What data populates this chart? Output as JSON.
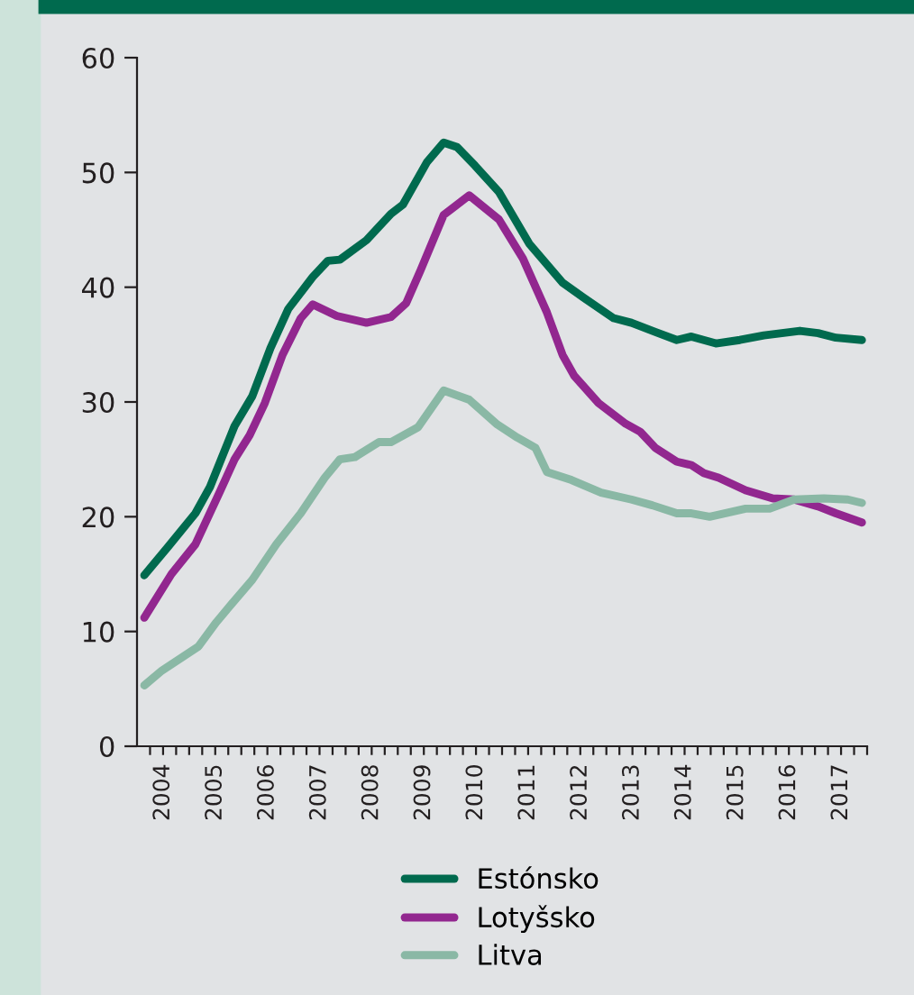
{
  "chart_data": {
    "type": "line",
    "xlim": [
      2004.0,
      2018.0
    ],
    "xticks": [
      {
        "value": 2004.25,
        "label": null
      },
      {
        "value": 2004.5,
        "label": "2004"
      },
      {
        "value": 2004.75,
        "label": null
      },
      {
        "value": 2005,
        "label": null
      },
      {
        "value": 2005.25,
        "label": null
      },
      {
        "value": 2005.5,
        "label": "2005"
      },
      {
        "value": 2005.75,
        "label": null
      },
      {
        "value": 2006,
        "label": null
      },
      {
        "value": 2006.25,
        "label": null
      },
      {
        "value": 2006.5,
        "label": "2006"
      },
      {
        "value": 2006.75,
        "label": null
      },
      {
        "value": 2007,
        "label": null
      },
      {
        "value": 2007.25,
        "label": null
      },
      {
        "value": 2007.5,
        "label": "2007"
      },
      {
        "value": 2007.75,
        "label": null
      },
      {
        "value": 2008,
        "label": null
      },
      {
        "value": 2008.25,
        "label": null
      },
      {
        "value": 2008.5,
        "label": "2008"
      },
      {
        "value": 2008.75,
        "label": null
      },
      {
        "value": 2009,
        "label": null
      },
      {
        "value": 2009.25,
        "label": null
      },
      {
        "value": 2009.5,
        "label": "2009"
      },
      {
        "value": 2009.75,
        "label": null
      },
      {
        "value": 2010,
        "label": null
      },
      {
        "value": 2010.25,
        "label": null
      },
      {
        "value": 2010.5,
        "label": "2010"
      },
      {
        "value": 2010.75,
        "label": null
      },
      {
        "value": 2011,
        "label": null
      },
      {
        "value": 2011.25,
        "label": null
      },
      {
        "value": 2011.5,
        "label": "2011"
      },
      {
        "value": 2011.75,
        "label": null
      },
      {
        "value": 2012,
        "label": null
      },
      {
        "value": 2012.25,
        "label": null
      },
      {
        "value": 2012.5,
        "label": "2012"
      },
      {
        "value": 2012.75,
        "label": null
      },
      {
        "value": 2013,
        "label": null
      },
      {
        "value": 2013.25,
        "label": null
      },
      {
        "value": 2013.5,
        "label": "2013"
      },
      {
        "value": 2013.75,
        "label": null
      },
      {
        "value": 2014,
        "label": null
      },
      {
        "value": 2014.25,
        "label": null
      },
      {
        "value": 2014.5,
        "label": "2014"
      },
      {
        "value": 2014.75,
        "label": null
      },
      {
        "value": 2015,
        "label": null
      },
      {
        "value": 2015.25,
        "label": null
      },
      {
        "value": 2015.5,
        "label": "2015"
      },
      {
        "value": 2015.75,
        "label": null
      },
      {
        "value": 2016,
        "label": null
      },
      {
        "value": 2016.25,
        "label": null
      },
      {
        "value": 2016.5,
        "label": "2016"
      },
      {
        "value": 2016.75,
        "label": null
      },
      {
        "value": 2017,
        "label": null
      },
      {
        "value": 2017.25,
        "label": null
      },
      {
        "value": 2017.5,
        "label": "2017"
      },
      {
        "value": 2017.75,
        "label": null
      },
      {
        "value": 2018,
        "label": null
      }
    ],
    "ylim": [
      0,
      60
    ],
    "yticks": [
      0,
      10,
      20,
      30,
      40,
      50,
      60
    ],
    "grid": false,
    "legend": "bottom",
    "line_style": "solid",
    "marker": "none",
    "series": [
      {
        "name": "Estónsko",
        "color": "#006a4e",
        "x": [
          2004.14,
          2004.6,
          2005.12,
          2005.4,
          2005.87,
          2006.21,
          2006.56,
          2006.9,
          2007.37,
          2007.66,
          2007.89,
          2008.4,
          2008.87,
          2009.1,
          2009.56,
          2009.88,
          2010.14,
          2010.48,
          2010.94,
          2011.52,
          2012.16,
          2012.56,
          2013.14,
          2013.48,
          2013.94,
          2014.35,
          2014.63,
          2015.1,
          2015.56,
          2016.02,
          2016.71,
          2017.06,
          2017.4,
          2017.9
        ],
        "values": [
          14.9,
          17.4,
          20.3,
          22.6,
          27.9,
          30.5,
          34.7,
          38.1,
          40.9,
          42.3,
          42.4,
          44.1,
          46.4,
          47.2,
          50.9,
          52.6,
          52.2,
          50.6,
          48.3,
          43.8,
          40.4,
          39.1,
          37.3,
          36.9,
          36.1,
          35.4,
          35.7,
          35.1,
          35.4,
          35.8,
          36.2,
          36.0,
          35.6,
          35.4
        ]
      },
      {
        "name": "Lotyšsko",
        "color": "#92278f",
        "x": [
          2004.14,
          2004.66,
          2005.12,
          2005.58,
          2005.87,
          2006.16,
          2006.45,
          2006.79,
          2007.14,
          2007.37,
          2007.83,
          2008.4,
          2008.87,
          2009.16,
          2009.44,
          2009.88,
          2010.37,
          2010.94,
          2011.4,
          2011.86,
          2012.16,
          2012.38,
          2012.85,
          2013.37,
          2013.65,
          2013.94,
          2014.35,
          2014.63,
          2014.87,
          2015.15,
          2015.67,
          2016.19,
          2016.6,
          2017.06,
          2017.4,
          2017.9
        ],
        "values": [
          11.2,
          15.0,
          17.6,
          22.1,
          25.0,
          27.1,
          29.9,
          34.1,
          37.3,
          38.5,
          37.5,
          36.9,
          37.4,
          38.6,
          41.5,
          46.3,
          48.0,
          45.9,
          42.5,
          37.8,
          34.1,
          32.3,
          29.9,
          28.1,
          27.4,
          26.0,
          24.8,
          24.5,
          23.8,
          23.4,
          22.3,
          21.6,
          21.5,
          20.9,
          20.3,
          19.5
        ]
      },
      {
        "name": "Litva",
        "color": "#8ab8a5",
        "x": [
          2004.14,
          2004.48,
          2005.18,
          2005.52,
          2005.87,
          2006.21,
          2006.67,
          2007.14,
          2007.6,
          2007.89,
          2008.18,
          2008.64,
          2008.87,
          2009.39,
          2009.88,
          2010.37,
          2010.89,
          2011.29,
          2011.64,
          2011.86,
          2012.33,
          2012.9,
          2013.48,
          2013.88,
          2014.35,
          2014.63,
          2014.98,
          2015.67,
          2016.13,
          2016.6,
          2017.17,
          2017.63,
          2017.9
        ],
        "values": [
          5.3,
          6.6,
          8.7,
          10.8,
          12.7,
          14.5,
          17.6,
          20.3,
          23.4,
          25.0,
          25.2,
          26.5,
          26.5,
          27.8,
          31.0,
          30.2,
          28.1,
          26.9,
          26.0,
          23.9,
          23.2,
          22.1,
          21.5,
          21.0,
          20.3,
          20.3,
          20.0,
          20.7,
          20.7,
          21.5,
          21.6,
          21.5,
          21.2
        ]
      }
    ]
  }
}
